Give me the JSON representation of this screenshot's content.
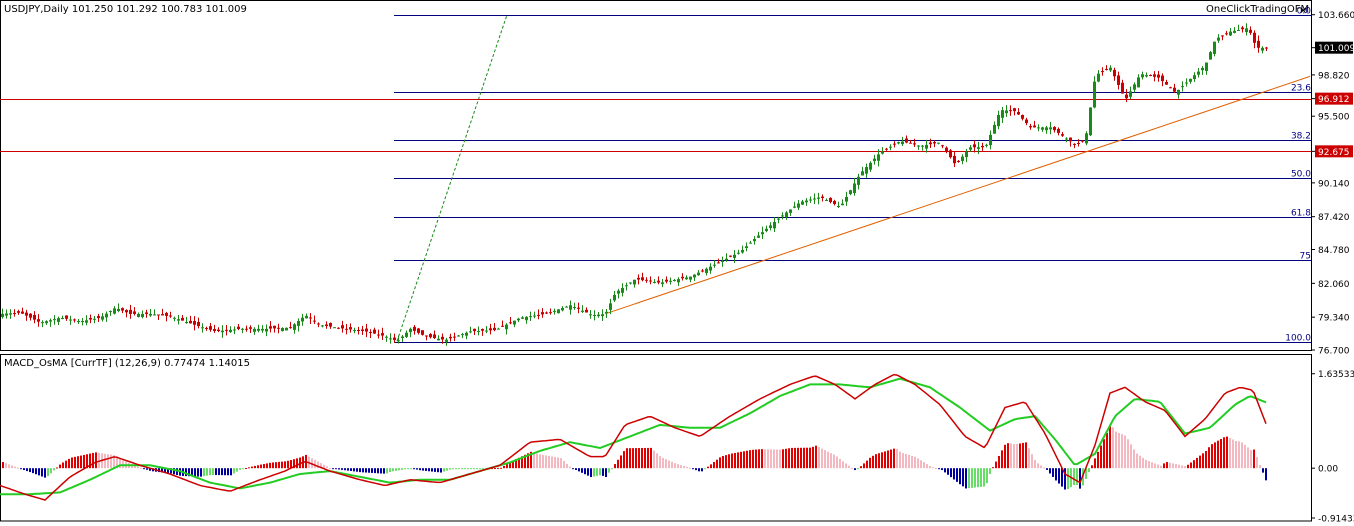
{
  "main_header": "USDJPY,Daily  101.250 101.292 100.783 101.009",
  "watermark": "OneClickTradingOFM",
  "osc_header": "MACD_OsMA [CurrTF] (12,26,9) 0.77474 1.14015",
  "colors": {
    "bull": "#1a8a1a",
    "bear": "#cc0000",
    "fib": "#000080",
    "hline": "#cc0000",
    "trend": "#e06000",
    "hist_up_strong": "#e00000",
    "hist_up_weak": "#f4b8c0",
    "hist_dn_strong": "#0000a0",
    "hist_dn_weak": "#66dd66",
    "signal": "#22cc22",
    "macd": "#cc0000"
  },
  "chart_data": [
    {
      "type": "candlestick",
      "symbol": "USDJPY",
      "timeframe": "Daily",
      "last_quote": {
        "open": 101.25,
        "high": 101.292,
        "low": 100.783,
        "close": 101.009
      },
      "ylim": [
        76.7,
        104.2
      ],
      "y_ticks": [
        "103.660",
        "101.009",
        "98.820",
        "96.912",
        "95.500",
        "92.675",
        "90.140",
        "87.420",
        "84.780",
        "82.060",
        "79.340",
        "76.700"
      ],
      "price_tags": [
        {
          "label": "101.009",
          "value": 101.009,
          "style": "current"
        },
        {
          "label": "96.912",
          "value": 96.912,
          "style": "level"
        },
        {
          "label": "92.675",
          "value": 92.675,
          "style": "level"
        }
      ],
      "horizontal_lines": [
        96.912,
        92.675
      ],
      "fibonacci": {
        "levels": [
          {
            "label": "0.0",
            "value": 103.66
          },
          {
            "label": "23.6",
            "value": 97.45
          },
          {
            "label": "38.2",
            "value": 93.62
          },
          {
            "label": "50.0",
            "value": 90.52
          },
          {
            "label": "61.8",
            "value": 87.41
          },
          {
            "label": "75",
            "value": 83.93
          },
          {
            "label": "100.0",
            "value": 77.37
          }
        ]
      },
      "anchor_points": [
        {
          "x": 0,
          "y": 79.6
        },
        {
          "x": 20,
          "y": 79.7
        },
        {
          "x": 40,
          "y": 78.9
        },
        {
          "x": 60,
          "y": 79.3
        },
        {
          "x": 80,
          "y": 79.0
        },
        {
          "x": 100,
          "y": 79.3
        },
        {
          "x": 115,
          "y": 80.1
        },
        {
          "x": 130,
          "y": 79.6
        },
        {
          "x": 150,
          "y": 79.6
        },
        {
          "x": 170,
          "y": 79.4
        },
        {
          "x": 195,
          "y": 78.7
        },
        {
          "x": 215,
          "y": 78.2
        },
        {
          "x": 240,
          "y": 78.4
        },
        {
          "x": 265,
          "y": 78.4
        },
        {
          "x": 290,
          "y": 78.5
        },
        {
          "x": 305,
          "y": 79.5
        },
        {
          "x": 320,
          "y": 78.7
        },
        {
          "x": 345,
          "y": 78.4
        },
        {
          "x": 365,
          "y": 78.2
        },
        {
          "x": 385,
          "y": 77.8
        },
        {
          "x": 397,
          "y": 77.4
        },
        {
          "x": 410,
          "y": 78.4
        },
        {
          "x": 425,
          "y": 77.8
        },
        {
          "x": 445,
          "y": 77.5
        },
        {
          "x": 470,
          "y": 78.2
        },
        {
          "x": 495,
          "y": 78.3
        },
        {
          "x": 520,
          "y": 79.3
        },
        {
          "x": 545,
          "y": 79.6
        },
        {
          "x": 570,
          "y": 80.3
        },
        {
          "x": 592,
          "y": 79.5
        },
        {
          "x": 605,
          "y": 79.6
        },
        {
          "x": 615,
          "y": 81.3
        },
        {
          "x": 635,
          "y": 82.4
        },
        {
          "x": 660,
          "y": 82.1
        },
        {
          "x": 690,
          "y": 82.6
        },
        {
          "x": 715,
          "y": 83.6
        },
        {
          "x": 740,
          "y": 84.6
        },
        {
          "x": 755,
          "y": 85.7
        },
        {
          "x": 780,
          "y": 87.4
        },
        {
          "x": 800,
          "y": 88.6
        },
        {
          "x": 820,
          "y": 89.0
        },
        {
          "x": 840,
          "y": 88.2
        },
        {
          "x": 860,
          "y": 90.9
        },
        {
          "x": 880,
          "y": 92.6
        },
        {
          "x": 900,
          "y": 93.5
        },
        {
          "x": 920,
          "y": 93.1
        },
        {
          "x": 940,
          "y": 93.4
        },
        {
          "x": 955,
          "y": 91.6
        },
        {
          "x": 970,
          "y": 93.0
        },
        {
          "x": 985,
          "y": 93.0
        },
        {
          "x": 1000,
          "y": 96.0
        },
        {
          "x": 1015,
          "y": 95.9
        },
        {
          "x": 1030,
          "y": 94.6
        },
        {
          "x": 1050,
          "y": 94.6
        },
        {
          "x": 1075,
          "y": 93.2
        },
        {
          "x": 1085,
          "y": 93.6
        },
        {
          "x": 1095,
          "y": 98.8
        },
        {
          "x": 1110,
          "y": 99.4
        },
        {
          "x": 1125,
          "y": 96.8
        },
        {
          "x": 1140,
          "y": 98.9
        },
        {
          "x": 1158,
          "y": 98.6
        },
        {
          "x": 1175,
          "y": 97.4
        },
        {
          "x": 1190,
          "y": 98.5
        },
        {
          "x": 1205,
          "y": 99.6
        },
        {
          "x": 1215,
          "y": 101.7
        },
        {
          "x": 1230,
          "y": 102.3
        },
        {
          "x": 1248,
          "y": 102.6
        },
        {
          "x": 1256,
          "y": 101.0
        },
        {
          "x": 1266,
          "y": 101.0
        }
      ],
      "trendline": [
        {
          "x": 605,
          "y": 79.6
        },
        {
          "x": 1310,
          "y": 98.7
        }
      ],
      "fib_diagonal": [
        {
          "x": 397,
          "y": 77.4
        },
        {
          "x": 507,
          "y": 103.66
        }
      ]
    },
    {
      "type": "oscillator",
      "name": "MACD_OsMA [CurrTF] (12,26,9)",
      "values_shown": [
        0.77474,
        1.14015
      ],
      "ylim": [
        -0.9143,
        1.7
      ],
      "y_ticks": [
        "1.63533",
        "0.00",
        "-0.91433"
      ],
      "macd_points": [
        {
          "x": 0,
          "y": -0.3
        },
        {
          "x": 25,
          "y": -0.45
        },
        {
          "x": 45,
          "y": -0.55
        },
        {
          "x": 70,
          "y": -0.15
        },
        {
          "x": 95,
          "y": 0.1
        },
        {
          "x": 115,
          "y": 0.2
        },
        {
          "x": 140,
          "y": 0.05
        },
        {
          "x": 170,
          "y": -0.1
        },
        {
          "x": 200,
          "y": -0.3
        },
        {
          "x": 230,
          "y": -0.4
        },
        {
          "x": 260,
          "y": -0.2
        },
        {
          "x": 285,
          "y": -0.05
        },
        {
          "x": 305,
          "y": 0.12
        },
        {
          "x": 330,
          "y": -0.05
        },
        {
          "x": 360,
          "y": -0.2
        },
        {
          "x": 385,
          "y": -0.3
        },
        {
          "x": 410,
          "y": -0.2
        },
        {
          "x": 440,
          "y": -0.25
        },
        {
          "x": 470,
          "y": -0.1
        },
        {
          "x": 500,
          "y": 0.05
        },
        {
          "x": 530,
          "y": 0.45
        },
        {
          "x": 560,
          "y": 0.5
        },
        {
          "x": 590,
          "y": 0.2
        },
        {
          "x": 605,
          "y": 0.2
        },
        {
          "x": 625,
          "y": 0.75
        },
        {
          "x": 650,
          "y": 0.9
        },
        {
          "x": 675,
          "y": 0.7
        },
        {
          "x": 700,
          "y": 0.55
        },
        {
          "x": 730,
          "y": 0.9
        },
        {
          "x": 760,
          "y": 1.2
        },
        {
          "x": 790,
          "y": 1.45
        },
        {
          "x": 815,
          "y": 1.6
        },
        {
          "x": 835,
          "y": 1.45
        },
        {
          "x": 855,
          "y": 1.2
        },
        {
          "x": 875,
          "y": 1.45
        },
        {
          "x": 895,
          "y": 1.63
        },
        {
          "x": 915,
          "y": 1.45
        },
        {
          "x": 940,
          "y": 1.1
        },
        {
          "x": 965,
          "y": 0.55
        },
        {
          "x": 985,
          "y": 0.35
        },
        {
          "x": 1005,
          "y": 1.05
        },
        {
          "x": 1025,
          "y": 1.15
        },
        {
          "x": 1045,
          "y": 0.6
        },
        {
          "x": 1065,
          "y": -0.1
        },
        {
          "x": 1080,
          "y": -0.25
        },
        {
          "x": 1095,
          "y": 0.4
        },
        {
          "x": 1110,
          "y": 1.3
        },
        {
          "x": 1125,
          "y": 1.4
        },
        {
          "x": 1145,
          "y": 1.15
        },
        {
          "x": 1165,
          "y": 1.0
        },
        {
          "x": 1185,
          "y": 0.55
        },
        {
          "x": 1205,
          "y": 0.85
        },
        {
          "x": 1225,
          "y": 1.3
        },
        {
          "x": 1240,
          "y": 1.4
        },
        {
          "x": 1253,
          "y": 1.35
        },
        {
          "x": 1266,
          "y": 0.77
        }
      ],
      "signal_points": [
        {
          "x": 0,
          "y": -0.45
        },
        {
          "x": 30,
          "y": -0.45
        },
        {
          "x": 60,
          "y": -0.42
        },
        {
          "x": 90,
          "y": -0.2
        },
        {
          "x": 120,
          "y": 0.05
        },
        {
          "x": 150,
          "y": 0.05
        },
        {
          "x": 180,
          "y": -0.05
        },
        {
          "x": 210,
          "y": -0.25
        },
        {
          "x": 240,
          "y": -0.35
        },
        {
          "x": 270,
          "y": -0.25
        },
        {
          "x": 300,
          "y": -0.1
        },
        {
          "x": 330,
          "y": -0.05
        },
        {
          "x": 360,
          "y": -0.15
        },
        {
          "x": 390,
          "y": -0.25
        },
        {
          "x": 420,
          "y": -0.2
        },
        {
          "x": 450,
          "y": -0.2
        },
        {
          "x": 480,
          "y": -0.05
        },
        {
          "x": 510,
          "y": 0.1
        },
        {
          "x": 540,
          "y": 0.3
        },
        {
          "x": 570,
          "y": 0.45
        },
        {
          "x": 600,
          "y": 0.35
        },
        {
          "x": 630,
          "y": 0.55
        },
        {
          "x": 660,
          "y": 0.75
        },
        {
          "x": 690,
          "y": 0.7
        },
        {
          "x": 720,
          "y": 0.7
        },
        {
          "x": 750,
          "y": 0.95
        },
        {
          "x": 780,
          "y": 1.25
        },
        {
          "x": 810,
          "y": 1.45
        },
        {
          "x": 840,
          "y": 1.45
        },
        {
          "x": 870,
          "y": 1.4
        },
        {
          "x": 900,
          "y": 1.55
        },
        {
          "x": 930,
          "y": 1.4
        },
        {
          "x": 960,
          "y": 1.05
        },
        {
          "x": 990,
          "y": 0.65
        },
        {
          "x": 1015,
          "y": 0.85
        },
        {
          "x": 1035,
          "y": 0.9
        },
        {
          "x": 1055,
          "y": 0.5
        },
        {
          "x": 1075,
          "y": 0.05
        },
        {
          "x": 1095,
          "y": 0.25
        },
        {
          "x": 1115,
          "y": 0.9
        },
        {
          "x": 1135,
          "y": 1.2
        },
        {
          "x": 1160,
          "y": 1.15
        },
        {
          "x": 1185,
          "y": 0.6
        },
        {
          "x": 1210,
          "y": 0.7
        },
        {
          "x": 1235,
          "y": 1.1
        },
        {
          "x": 1250,
          "y": 1.25
        },
        {
          "x": 1266,
          "y": 1.14
        }
      ]
    }
  ]
}
